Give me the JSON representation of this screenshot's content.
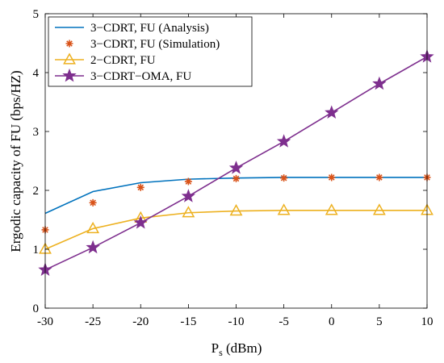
{
  "chart_data": {
    "type": "line",
    "title": "",
    "xlabel": "P",
    "xlabel_subscript": "s",
    "xlabel_unit": " (dBm)",
    "ylabel": "Ergodic capacity of FU (bps/HZ)",
    "xlim": [
      -30,
      10
    ],
    "ylim": [
      0,
      5
    ],
    "xticks": [
      "-30",
      "-25",
      "-20",
      "-15",
      "-10",
      "-5",
      "0",
      "5",
      "10"
    ],
    "yticks": [
      "0",
      "1",
      "2",
      "3",
      "4",
      "5"
    ],
    "grid": false,
    "legend_position": "top-left",
    "x": [
      -30,
      -25,
      -20,
      -15,
      -10,
      -5,
      0,
      5,
      10
    ],
    "series": [
      {
        "name": "3−CDRT, FU  (Analysis)",
        "style": "line",
        "marker": "none",
        "color": "#0072BD",
        "values": [
          1.61,
          1.98,
          2.13,
          2.19,
          2.21,
          2.22,
          2.22,
          2.22,
          2.22
        ]
      },
      {
        "name": "3−CDRT, FU  (Simulation)",
        "style": "markers",
        "marker": "asterisk",
        "color": "#D95319",
        "values": [
          1.33,
          1.79,
          2.05,
          2.15,
          2.2,
          2.21,
          2.22,
          2.22,
          2.22
        ]
      },
      {
        "name": "2−CDRT, FU",
        "style": "line",
        "marker": "triangle",
        "color": "#EDB120",
        "values": [
          1.0,
          1.35,
          1.53,
          1.62,
          1.65,
          1.66,
          1.66,
          1.66,
          1.66
        ]
      },
      {
        "name": "3−CDRT−OMA, FU",
        "style": "line",
        "marker": "star",
        "color": "#7E2F8E",
        "values": [
          0.65,
          1.03,
          1.45,
          1.9,
          2.38,
          2.83,
          3.32,
          3.81,
          4.27
        ]
      }
    ]
  }
}
